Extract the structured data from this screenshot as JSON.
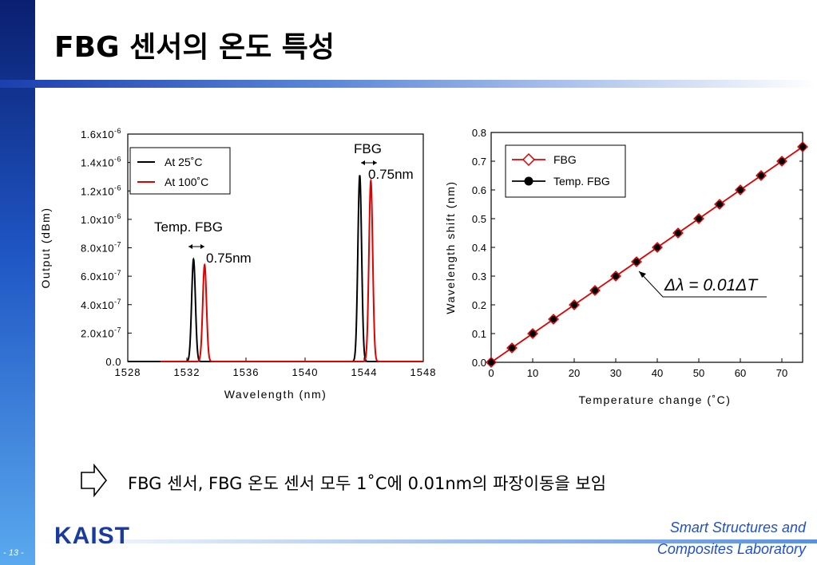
{
  "slide": {
    "title": "FBG 센서의 온도 특성",
    "page_number": "- 13 -",
    "logo_text": "KAIST",
    "lab_line1": "Smart Structures and",
    "lab_line2": "Composites Laboratory",
    "summary": "FBG 센서, FBG 온도 센서 모두 1˚C에 0.01nm의 파장이동을 보임",
    "arrow_icon": "hollow-right-arrow-icon"
  },
  "chart_data": [
    {
      "type": "line",
      "xlabel": "Wavelength (nm)",
      "ylabel": "Output (dBm)",
      "xlim": [
        1528,
        1548
      ],
      "ylim": [
        0,
        1.6e-06
      ],
      "x_ticks": [
        1528,
        1532,
        1536,
        1540,
        1544,
        1548
      ],
      "y_ticks": [
        {
          "value": 0,
          "mantissa": "0.0",
          "exp": ""
        },
        {
          "value": 2e-07,
          "mantissa": "2.0x10",
          "exp": "-7"
        },
        {
          "value": 4e-07,
          "mantissa": "4.0x10",
          "exp": "-7"
        },
        {
          "value": 6e-07,
          "mantissa": "6.0x10",
          "exp": "-7"
        },
        {
          "value": 8e-07,
          "mantissa": "8.0x10",
          "exp": "-7"
        },
        {
          "value": 1e-06,
          "mantissa": "1.0x10",
          "exp": "-6"
        },
        {
          "value": 1.2e-06,
          "mantissa": "1.2x10",
          "exp": "-6"
        },
        {
          "value": 1.4e-06,
          "mantissa": "1.4x10",
          "exp": "-6"
        },
        {
          "value": 1.6e-06,
          "mantissa": "1.6x10",
          "exp": "-6"
        }
      ],
      "legend": {
        "position": "top-left",
        "entries": [
          "At  25˚C",
          "At 100˚C"
        ]
      },
      "series": [
        {
          "name": "At  25˚C",
          "color": "#000000",
          "peaks": [
            {
              "center": 1532.45,
              "height": 7.2e-07,
              "width": 0.18
            },
            {
              "center": 1543.7,
              "height": 1.31e-06,
              "width": 0.18
            }
          ]
        },
        {
          "name": "At 100˚C",
          "color": "#e00000",
          "baseline_start": 1530.2,
          "peaks": [
            {
              "center": 1533.2,
              "height": 6.8e-07,
              "width": 0.18
            },
            {
              "center": 1544.45,
              "height": 1.27e-06,
              "width": 0.18
            }
          ]
        }
      ],
      "annotations": [
        {
          "text": "Temp. FBG",
          "shift": "0.75nm"
        },
        {
          "text": "FBG",
          "shift": "0.75nm"
        }
      ]
    },
    {
      "type": "scatter",
      "xlabel": "Temperature change (˚C)",
      "ylabel": "Wavelength shift (nm)",
      "xlim": [
        0,
        75
      ],
      "ylim": [
        0,
        0.8
      ],
      "x_ticks": [
        0,
        10,
        20,
        30,
        40,
        50,
        60,
        70
      ],
      "y_ticks": [
        "0.0",
        "0.1",
        "0.2",
        "0.3",
        "0.4",
        "0.5",
        "0.6",
        "0.7",
        "0.8"
      ],
      "legend": {
        "position": "top-right",
        "entries": [
          "FBG",
          "Temp. FBG"
        ]
      },
      "series": [
        {
          "name": "FBG",
          "color": "#e00000",
          "marker": "diamond",
          "x": [
            0,
            5,
            10,
            15,
            20,
            25,
            30,
            35,
            40,
            45,
            50,
            55,
            60,
            65,
            70,
            75
          ],
          "y": [
            0,
            0.05,
            0.1,
            0.15,
            0.2,
            0.25,
            0.3,
            0.35,
            0.4,
            0.45,
            0.5,
            0.55,
            0.6,
            0.65,
            0.7,
            0.75
          ]
        },
        {
          "name": "Temp. FBG",
          "color": "#000000",
          "marker": "circle",
          "x": [
            0,
            5,
            10,
            15,
            20,
            25,
            30,
            35,
            40,
            45,
            50,
            55,
            60,
            65,
            70,
            75
          ],
          "y": [
            0,
            0.05,
            0.1,
            0.15,
            0.2,
            0.25,
            0.3,
            0.35,
            0.4,
            0.45,
            0.5,
            0.55,
            0.6,
            0.65,
            0.7,
            0.75
          ]
        }
      ],
      "fit_line": {
        "color": "#e00000",
        "x": [
          0,
          75
        ],
        "y": [
          0,
          0.75
        ]
      },
      "annotation": "Δλ = 0.01ΔT"
    }
  ]
}
